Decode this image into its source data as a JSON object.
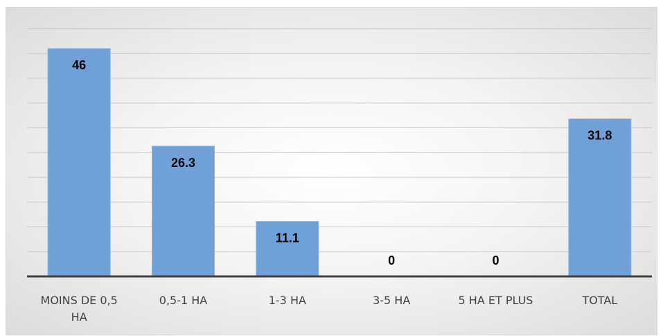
{
  "chart_data": {
    "type": "bar",
    "categories": [
      [
        "MOINS DE 0,5",
        "HA"
      ],
      [
        "0,5-1 HA"
      ],
      [
        "1-3 HA"
      ],
      [
        "3-5 HA"
      ],
      [
        "5 HA ET PLUS"
      ],
      [
        "TOTAL"
      ]
    ],
    "values": [
      46,
      26.3,
      11.1,
      0,
      0,
      31.8
    ],
    "data_labels": [
      "46",
      "26.3",
      "11.1",
      "0",
      "0",
      "31.8"
    ],
    "title": "",
    "xlabel": "",
    "ylabel": "",
    "ylim": [
      0,
      50
    ],
    "grid": true,
    "legend": "none",
    "bar_color": "#6fa0d8",
    "axis_color": "#404040",
    "grid_color": "#c8c8c8"
  }
}
